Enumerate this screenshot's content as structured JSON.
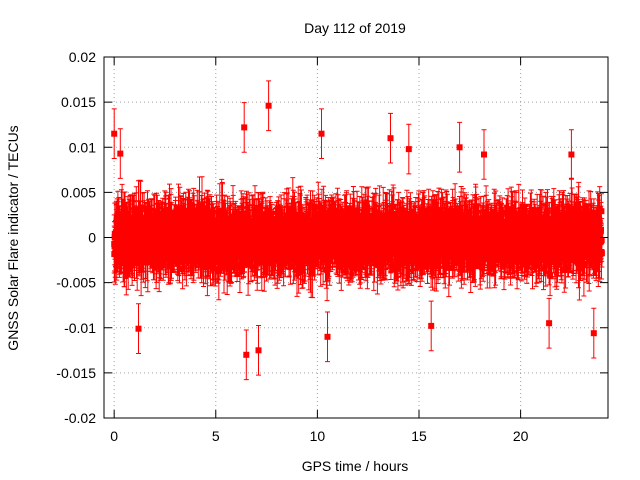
{
  "chart_data": {
    "type": "scatter",
    "title": "Day 112 of 2019",
    "xlabel": "GPS time / hours",
    "ylabel": "GNSS Solar Flare indicator / TECUs",
    "xlim": [
      -0.5,
      24.3
    ],
    "ylim": [
      -0.02,
      0.02
    ],
    "x_ticks": [
      0,
      5,
      10,
      15,
      20
    ],
    "x_tick_labels": [
      "0",
      "5",
      "10",
      "15",
      "20"
    ],
    "y_ticks": [
      0.02,
      0.015,
      0.01,
      0.005,
      0,
      -0.005,
      -0.01,
      -0.015,
      -0.02
    ],
    "y_tick_labels": [
      "0.02",
      "0.015",
      "0.01",
      "0.005",
      "0",
      "-0.005",
      "-0.01",
      "-0.015",
      "-0.02"
    ],
    "grid": true,
    "legend": "none",
    "series": [
      {
        "name": "solar flare indicator",
        "color": "#ff0000",
        "marker": "square",
        "error_bars": true,
        "x_range": [
          0,
          24
        ],
        "step_hours": 0.00833,
        "typical_spread": 0.0035,
        "typical_error": 0.0025,
        "notable_points": [
          {
            "x": 0.0,
            "y": 0.0115
          },
          {
            "x": 0.3,
            "y": 0.0093
          },
          {
            "x": 1.2,
            "y": -0.0101
          },
          {
            "x": 6.4,
            "y": 0.0122
          },
          {
            "x": 6.5,
            "y": -0.013
          },
          {
            "x": 7.1,
            "y": -0.0125
          },
          {
            "x": 7.6,
            "y": 0.0146
          },
          {
            "x": 10.2,
            "y": 0.0115
          },
          {
            "x": 10.5,
            "y": -0.011
          },
          {
            "x": 13.6,
            "y": 0.011
          },
          {
            "x": 14.5,
            "y": 0.0098
          },
          {
            "x": 15.6,
            "y": -0.0098
          },
          {
            "x": 17.0,
            "y": 0.01
          },
          {
            "x": 18.2,
            "y": 0.0092
          },
          {
            "x": 21.4,
            "y": -0.0095
          },
          {
            "x": 22.5,
            "y": 0.0092
          },
          {
            "x": 23.6,
            "y": -0.0106
          }
        ]
      }
    ]
  }
}
